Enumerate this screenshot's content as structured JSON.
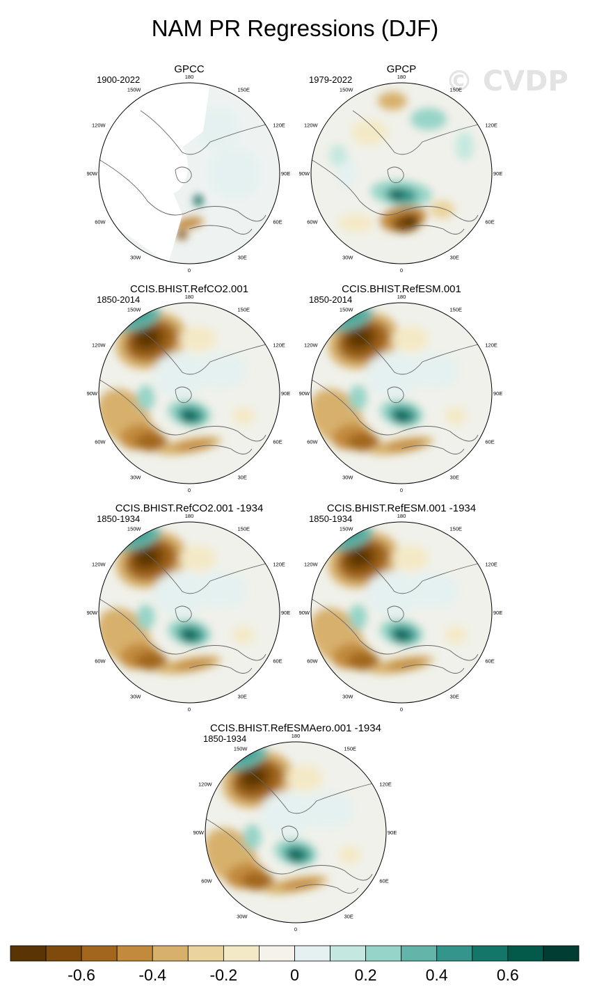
{
  "title": "NAM PR Regressions (DJF)",
  "watermark": "© CVDP",
  "chart_data": {
    "type": "heatmap",
    "projection": "polar stereographic (north pole)",
    "panels": [
      {
        "name": "GPCC",
        "period": "1900-2022"
      },
      {
        "name": "GPCP",
        "period": "1979-2022"
      },
      {
        "name": "CCIS.BHIST.RefCO2.001",
        "period": "1850-2014"
      },
      {
        "name": "CCIS.BHIST.RefESM.001",
        "period": "1850-2014"
      },
      {
        "name": "CCIS.BHIST.RefCO2.001 -1934",
        "period": "1850-1934"
      },
      {
        "name": "CCIS.BHIST.RefESM.001 -1934",
        "period": "1850-1934"
      },
      {
        "name": "CCIS.BHIST.RefESMAero.001 -1934",
        "period": "1850-1934"
      }
    ],
    "longitude_labels": [
      "180",
      "150E",
      "120E",
      "90E",
      "60E",
      "30E",
      "0",
      "30W",
      "60W",
      "90W",
      "120W",
      "150W"
    ],
    "colorbar": {
      "colors": [
        "#5a3405",
        "#7f4b0c",
        "#a2661e",
        "#c28a3c",
        "#d7b06c",
        "#ead39c",
        "#f4e9c6",
        "#f4f2ea",
        "#e5f1f0",
        "#c4e8df",
        "#96d4c7",
        "#62b5a8",
        "#33958b",
        "#127669",
        "#035a4b",
        "#013e31"
      ],
      "tick_labels": [
        "-0.6",
        "-0.4",
        "-0.2",
        "0",
        "0.2",
        "0.4",
        "0.6"
      ],
      "tick_values": [
        -0.6,
        -0.4,
        -0.2,
        0,
        0.2,
        0.4,
        0.6
      ]
    }
  }
}
